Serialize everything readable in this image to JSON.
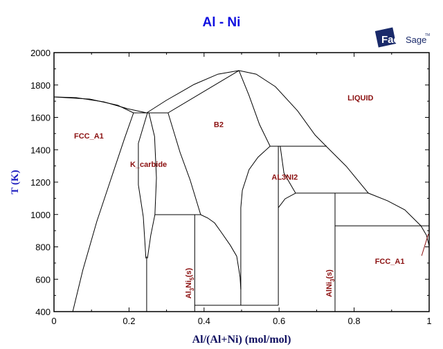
{
  "chart_data": {
    "type": "line",
    "title": "Al - Ni",
    "xlabel": "Al/(Al+Ni) (mol/mol)",
    "ylabel": "T (K)",
    "xlim": [
      0,
      1
    ],
    "ylim": [
      400,
      2000
    ],
    "x_ticks": [
      0,
      0.2,
      0.4,
      0.6,
      0.8,
      1
    ],
    "x_tick_labels": [
      "0",
      "0.2",
      "0.4",
      "0.6",
      "0.8",
      "1"
    ],
    "y_ticks": [
      400,
      600,
      800,
      1000,
      1200,
      1400,
      1600,
      1800,
      2000
    ],
    "y_tick_labels": [
      "400",
      "600",
      "800",
      "1000",
      "1200",
      "1400",
      "1600",
      "1800",
      "2000"
    ],
    "grid": false,
    "boundaries": [
      {
        "name": "liquidus-ni-rich",
        "points": [
          [
            0,
            1726
          ],
          [
            0.059,
            1722
          ],
          [
            0.133,
            1696
          ],
          [
            0.197,
            1653
          ],
          [
            0.247,
            1628
          ]
        ]
      },
      {
        "name": "fcc-solidus",
        "points": [
          [
            0,
            1726
          ],
          [
            0.096,
            1713
          ],
          [
            0.17,
            1675
          ],
          [
            0.212,
            1628
          ]
        ]
      },
      {
        "name": "fcc-solvus",
        "points": [
          [
            0.212,
            1628
          ],
          [
            0.188,
            1470
          ],
          [
            0.151,
            1213
          ],
          [
            0.114,
            956
          ],
          [
            0.077,
            657
          ],
          [
            0.05,
            400
          ]
        ]
      },
      {
        "name": "liquidus-b2-left",
        "points": [
          [
            0.247,
            1628
          ],
          [
            0.299,
            1705
          ],
          [
            0.373,
            1803
          ],
          [
            0.437,
            1867
          ],
          [
            0.493,
            1889
          ]
        ]
      },
      {
        "name": "liquidus-al-side",
        "points": [
          [
            0.493,
            1889
          ],
          [
            0.539,
            1867
          ],
          [
            0.59,
            1790
          ],
          [
            0.649,
            1641
          ],
          [
            0.696,
            1491
          ],
          [
            0.727,
            1418
          ],
          [
            0.779,
            1298
          ],
          [
            0.838,
            1132
          ],
          [
            0.889,
            1085
          ],
          [
            0.935,
            1029
          ],
          [
            0.978,
            930
          ],
          [
            0.993,
            871
          ],
          [
            1,
            806
          ]
        ]
      },
      {
        "name": "peritectic-1630",
        "points": [
          [
            0.212,
            1628
          ],
          [
            0.304,
            1628
          ]
        ]
      },
      {
        "name": "k-carbide-left",
        "points": [
          [
            0.249,
            1628
          ],
          [
            0.225,
            1440
          ],
          [
            0.225,
            1183
          ],
          [
            0.238,
            986
          ],
          [
            0.245,
            729
          ]
        ]
      },
      {
        "name": "k-carbide-right",
        "points": [
          [
            0.253,
            1628
          ],
          [
            0.268,
            1482
          ],
          [
            0.273,
            1226
          ],
          [
            0.269,
            999
          ],
          [
            0.258,
            871
          ],
          [
            0.249,
            729
          ]
        ]
      },
      {
        "name": "k-carbide-line",
        "points": [
          [
            0.247,
            740
          ],
          [
            0.247,
            400
          ]
        ]
      },
      {
        "name": "eutectoid-1000",
        "points": [
          [
            0.269,
            999
          ],
          [
            0.391,
            999
          ]
        ]
      },
      {
        "name": "b2-left",
        "points": [
          [
            0.304,
            1628
          ],
          [
            0.336,
            1384
          ],
          [
            0.363,
            1213
          ],
          [
            0.391,
            999
          ]
        ]
      },
      {
        "name": "b2-lower-left",
        "points": [
          [
            0.391,
            999
          ],
          [
            0.41,
            978
          ],
          [
            0.428,
            948
          ],
          [
            0.446,
            890
          ],
          [
            0.47,
            810
          ],
          [
            0.487,
            742
          ],
          [
            0.496,
            614
          ],
          [
            0.498,
            537
          ]
        ]
      },
      {
        "name": "al3ni5-line",
        "points": [
          [
            0.375,
            999
          ],
          [
            0.375,
            400
          ]
        ]
      },
      {
        "name": "bottom-line-439",
        "points": [
          [
            0.375,
            439
          ],
          [
            0.598,
            439
          ]
        ]
      },
      {
        "name": "b2-peak-left",
        "points": [
          [
            0.304,
            1628
          ],
          [
            0.493,
            1889
          ]
        ]
      },
      {
        "name": "b2-right-top",
        "points": [
          [
            0.493,
            1889
          ],
          [
            0.52,
            1735
          ],
          [
            0.548,
            1555
          ],
          [
            0.576,
            1422
          ]
        ]
      },
      {
        "name": "peritectic-1422",
        "points": [
          [
            0.576,
            1422
          ],
          [
            0.727,
            1422
          ]
        ]
      },
      {
        "name": "b2-right",
        "points": [
          [
            0.576,
            1422
          ],
          [
            0.544,
            1354
          ],
          [
            0.52,
            1277
          ],
          [
            0.502,
            1149
          ],
          [
            0.498,
            1042
          ],
          [
            0.498,
            439
          ]
        ]
      },
      {
        "name": "al3ni2-left",
        "points": [
          [
            0.598,
            1422
          ],
          [
            0.598,
            439
          ]
        ]
      },
      {
        "name": "al3ni2-right",
        "points": [
          [
            0.603,
            1422
          ],
          [
            0.613,
            1256
          ],
          [
            0.644,
            1132
          ]
        ]
      },
      {
        "name": "al3ni2-lower",
        "points": [
          [
            0.598,
            1042
          ],
          [
            0.616,
            1097
          ],
          [
            0.644,
            1132
          ]
        ]
      },
      {
        "name": "peritectic-1132",
        "points": [
          [
            0.644,
            1132
          ],
          [
            0.838,
            1132
          ]
        ]
      },
      {
        "name": "al3ni-line",
        "points": [
          [
            0.749,
            1132
          ],
          [
            0.749,
            400
          ]
        ]
      },
      {
        "name": "eutectic-930",
        "points": [
          [
            0.749,
            930
          ],
          [
            1,
            930
          ]
        ]
      }
    ],
    "phase_labels": [
      {
        "text": "FCC_A1",
        "x": 0.093,
        "T": 1470
      },
      {
        "text": "K_carbide",
        "x": 0.252,
        "T": 1295
      },
      {
        "text": "B2",
        "x": 0.439,
        "T": 1540
      },
      {
        "text": "LIQUID",
        "x": 0.817,
        "T": 1705
      },
      {
        "text": "AL3NI2",
        "x": 0.615,
        "T": 1215
      },
      {
        "text": "FCC_A1",
        "x": 0.895,
        "T": 695
      }
    ],
    "compound_labels": [
      {
        "main": "Al",
        "sub1": "3",
        "mid": "Ni",
        "sub2": "5",
        "end": "(s)",
        "x": 0.365,
        "T": 575
      },
      {
        "main": "Al",
        "sub1": "",
        "mid": "Ni",
        "sub2": "3",
        "end": "(s)",
        "x": 0.74,
        "T": 575
      }
    ],
    "leader_line": {
      "from": [
        0.98,
        745
      ],
      "to": [
        0.998,
        880
      ]
    }
  },
  "logo": {
    "text_bold": "Fact",
    "text_light": "Sage",
    "tm": "TM"
  },
  "colors": {
    "title": "#1010e0",
    "label": "#8b1010",
    "logo": "#1a2a6a"
  }
}
